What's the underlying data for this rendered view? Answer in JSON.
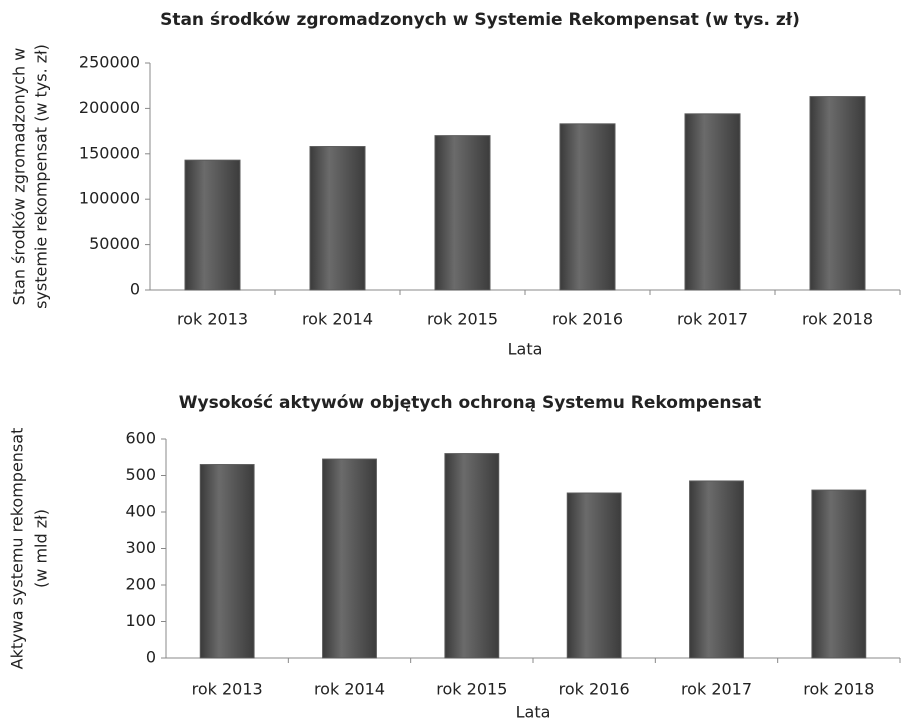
{
  "chart_data": [
    {
      "type": "bar",
      "title": "Stan środków zgromadzonych w Systemie Rekompensat (w tys. zł)",
      "xlabel": "Lata",
      "ylabel": [
        "Stan środków zgromadzonych w",
        "systemie rekompensat (w tys. zł)"
      ],
      "categories": [
        "rok 2013",
        "rok 2014",
        "rok 2015",
        "rok 2016",
        "rok 2017",
        "rok 2018"
      ],
      "values": [
        143000,
        158000,
        170000,
        183000,
        194000,
        213000
      ],
      "color": "#5a5a5a",
      "ylim": [
        0,
        250000
      ],
      "yticks": [
        0,
        50000,
        100000,
        150000,
        200000,
        250000
      ],
      "grid": false
    },
    {
      "type": "bar",
      "title": "Wysokość aktywów objętych ochroną Systemu Rekompensat",
      "xlabel": "Lata",
      "ylabel": [
        "Aktywa systemu rekompensat",
        "(w mld zł)"
      ],
      "categories": [
        "rok 2013",
        "rok 2014",
        "rok 2015",
        "rok 2016",
        "rok 2017",
        "rok 2018"
      ],
      "values": [
        530,
        545,
        560,
        452,
        485,
        460
      ],
      "color": "#5a5a5a",
      "ylim": [
        0,
        600
      ],
      "yticks": [
        0,
        100,
        200,
        300,
        400,
        500,
        600
      ],
      "grid": false
    }
  ]
}
